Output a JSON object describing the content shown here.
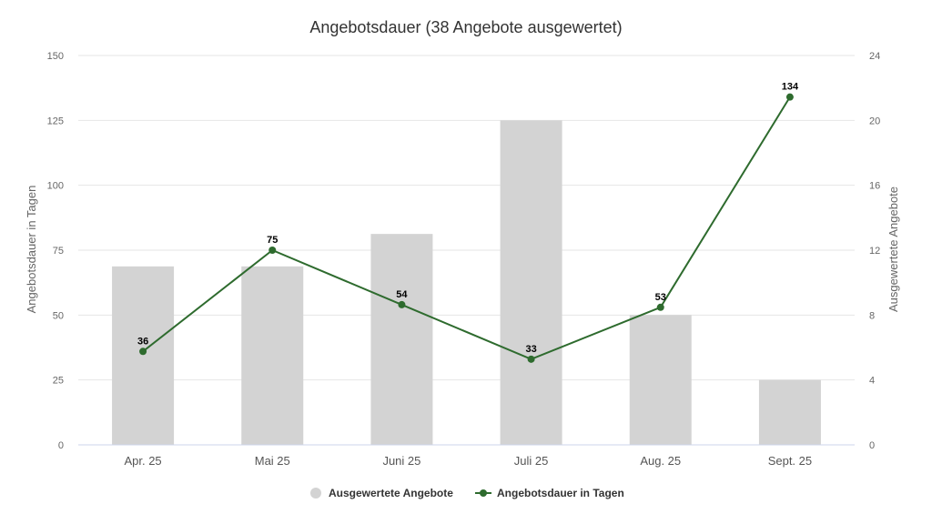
{
  "chart_data": {
    "type": "bar+line",
    "title": "Angebotsdauer (38 Angebote ausgewertet)",
    "categories": [
      "Apr. 25",
      "Mai 25",
      "Juni 25",
      "Juli 25",
      "Aug. 25",
      "Sept. 25"
    ],
    "y_left": {
      "label": "Angebotsdauer in Tagen",
      "range": [
        0,
        150
      ],
      "ticks": [
        "0",
        "25",
        "50",
        "75",
        "100",
        "125",
        "150"
      ]
    },
    "y_right": {
      "label": "Ausgewertete Angebote",
      "range": [
        0,
        24
      ],
      "ticks": [
        "0",
        "4",
        "8",
        "12",
        "16",
        "20",
        "24"
      ]
    },
    "series": [
      {
        "name": "Ausgewertete Angebote",
        "type": "bar",
        "axis": "right",
        "color": "#d3d3d3",
        "values": [
          11,
          11,
          13,
          20,
          8,
          4
        ]
      },
      {
        "name": "Angebotsdauer in Tagen",
        "type": "line",
        "axis": "left",
        "color": "#2e6b2e",
        "values": [
          36,
          75,
          54,
          33,
          53,
          134
        ],
        "data_labels": [
          "36",
          "75",
          "54",
          "33",
          "53",
          "134"
        ]
      }
    ],
    "grid": true,
    "legend_position": "bottom-center"
  }
}
